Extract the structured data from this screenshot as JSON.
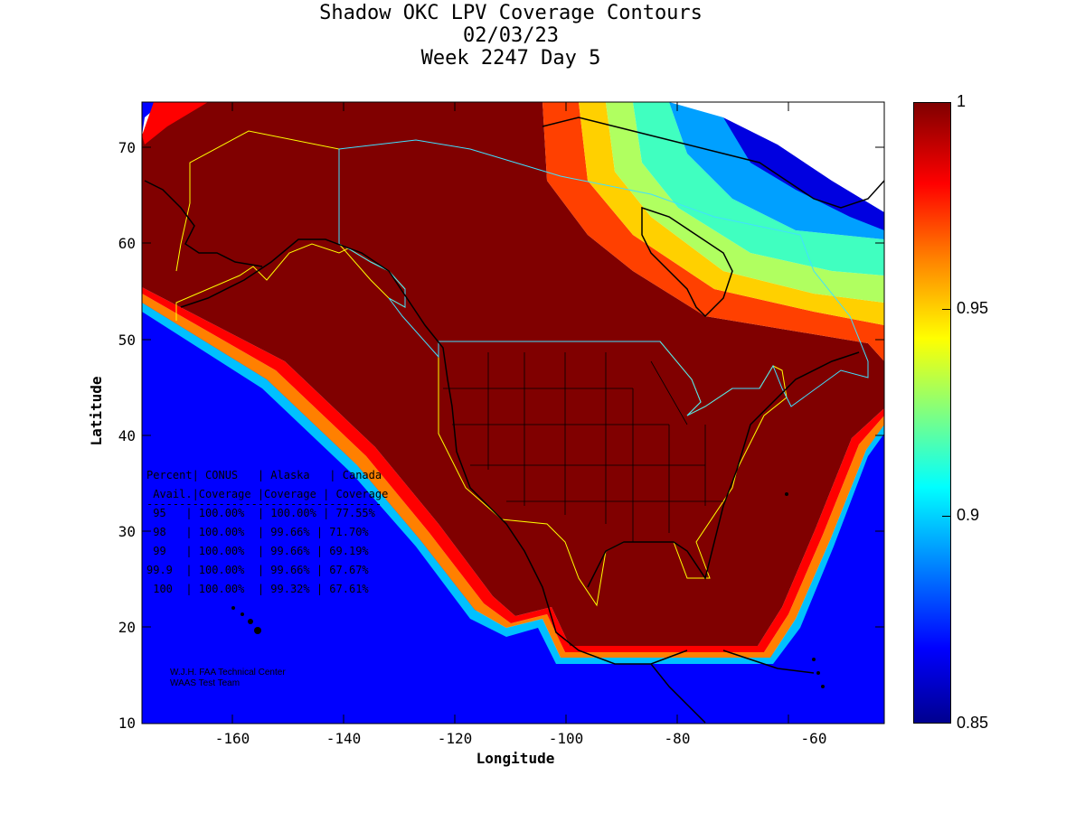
{
  "title": {
    "line1": "Shadow OKC LPV Coverage Contours",
    "line2": "02/03/23",
    "line3": "Week 2247 Day 5"
  },
  "axes": {
    "xlabel": "Longitude",
    "ylabel": "Latitude",
    "x_ticks": [
      "-160",
      "-140",
      "-120",
      "-100",
      "-80",
      "-60"
    ],
    "y_ticks": [
      "70",
      "60",
      "50",
      "40",
      "30",
      "20",
      "10"
    ]
  },
  "colorbar": {
    "labels": [
      "1",
      "0.95",
      "0.9",
      "0.85"
    ]
  },
  "table": {
    "header1": "Percent| CONUS   | Alaska   | Canada",
    "header2": " Avail.|Coverage |Coverage | Coverage",
    "separator": "------------------------------------",
    "rows": [
      " 95   | 100.00%  | 100.00% | 77.55%",
      " 98   | 100.00%  | 99.66% | 71.70%",
      " 99   | 100.00%  | 99.66% | 69.19%",
      "99.9  | 100.00%  | 99.66% | 67.67%",
      " 100  | 100.00%  | 99.32% | 67.61%"
    ]
  },
  "credit": {
    "line1": "W.J.H. FAA Technical Center",
    "line2": "WAAS Test Team"
  },
  "colors": {
    "full": "#800000",
    "red": "#ff0000",
    "orange": "#ff8000",
    "yellow": "#ffff00",
    "green": "#80ff80",
    "cyan": "#00ffff",
    "lightblue": "#0080ff",
    "blue": "#0000ff",
    "navy": "#00008f"
  }
}
